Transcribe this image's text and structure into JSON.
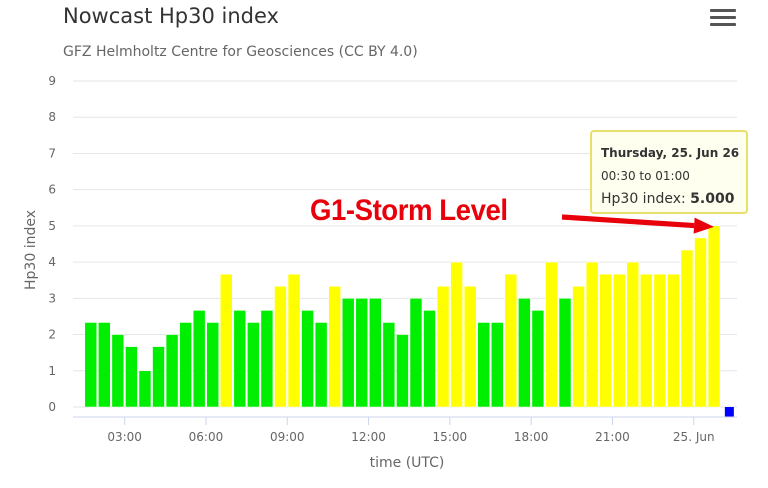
{
  "header": {
    "title": "Nowcast Hp30 index",
    "subtitle": "GFZ Helmholtz Centre for Geosciences (CC BY 4.0)",
    "menu_icon": "hamburger-menu-icon"
  },
  "colors": {
    "quiet": "#00ee00",
    "active": "#ffff00",
    "current": "#0000ff",
    "annotation": "#e8000b"
  },
  "chart_data": {
    "type": "bar",
    "xlabel": "time (UTC)",
    "ylabel": "Hp30 index",
    "ylim": [
      0,
      9
    ],
    "yticks": [
      "0",
      "1",
      "2",
      "3",
      "4",
      "5",
      "6",
      "7",
      "8",
      "9"
    ],
    "xticks": [
      {
        "label": "03:00",
        "hour": 3
      },
      {
        "label": "06:00",
        "hour": 6
      },
      {
        "label": "09:00",
        "hour": 9
      },
      {
        "label": "12:00",
        "hour": 12
      },
      {
        "label": "15:00",
        "hour": 15
      },
      {
        "label": "18:00",
        "hour": 18
      },
      {
        "label": "21:00",
        "hour": 21
      },
      {
        "label": "25. Jun",
        "hour": 24
      }
    ],
    "x_start_hour": 1.5,
    "interval_hours": 0.5,
    "values": [
      2.333,
      2.333,
      2.0,
      1.667,
      1.0,
      1.667,
      2.0,
      2.333,
      2.667,
      2.333,
      3.667,
      2.667,
      2.333,
      2.667,
      3.333,
      3.667,
      2.667,
      2.333,
      3.333,
      3.0,
      3.0,
      3.0,
      2.333,
      2.0,
      3.0,
      2.667,
      3.333,
      4.0,
      3.333,
      2.333,
      2.333,
      3.667,
      3.0,
      2.667,
      4.0,
      3.0,
      3.333,
      4.0,
      3.667,
      3.667,
      4.0,
      3.667,
      3.667,
      3.667,
      4.333,
      4.667,
      5.0,
      0.0
    ],
    "storm_threshold": 3.333,
    "current_interval_marker": true,
    "grid": true,
    "legend": "none"
  },
  "tooltip": {
    "title": "Thursday, 25. Jun 26",
    "range": "00:30 to 01:00",
    "label": "Hp30 index: ",
    "value": "5.000"
  },
  "annotation": {
    "text": "G1-Storm Level"
  }
}
